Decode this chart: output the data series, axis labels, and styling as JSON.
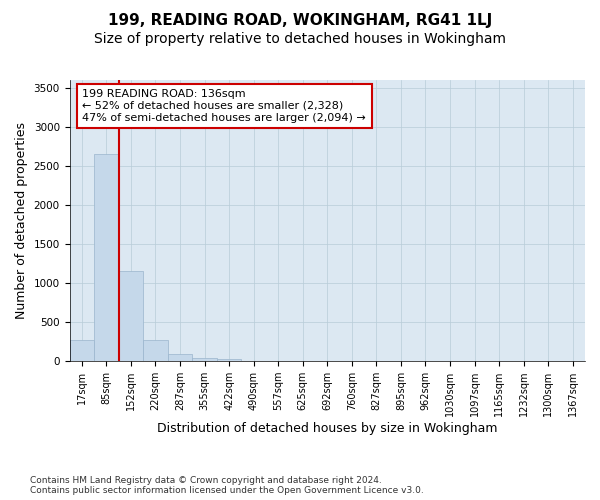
{
  "title": "199, READING ROAD, WOKINGHAM, RG41 1LJ",
  "subtitle": "Size of property relative to detached houses in Wokingham",
  "xlabel": "Distribution of detached houses by size in Wokingham",
  "ylabel": "Number of detached properties",
  "footer_line1": "Contains HM Land Registry data © Crown copyright and database right 2024.",
  "footer_line2": "Contains public sector information licensed under the Open Government Licence v3.0.",
  "categories": [
    "17sqm",
    "85sqm",
    "152sqm",
    "220sqm",
    "287sqm",
    "355sqm",
    "422sqm",
    "490sqm",
    "557sqm",
    "625sqm",
    "692sqm",
    "760sqm",
    "827sqm",
    "895sqm",
    "962sqm",
    "1030sqm",
    "1097sqm",
    "1165sqm",
    "1232sqm",
    "1300sqm",
    "1367sqm"
  ],
  "values": [
    275,
    2650,
    1150,
    275,
    90,
    45,
    25,
    0,
    0,
    0,
    0,
    0,
    0,
    0,
    0,
    0,
    0,
    0,
    0,
    0,
    0
  ],
  "bar_color": "#c5d8ea",
  "bar_edge_color": "#9ab5cc",
  "vline_x": 1.5,
  "vline_color": "#cc0000",
  "annotation_text": "199 READING ROAD: 136sqm\n← 52% of detached houses are smaller (2,328)\n47% of semi-detached houses are larger (2,094) →",
  "annotation_box_facecolor": "#ffffff",
  "annotation_box_edgecolor": "#cc0000",
  "ylim": [
    0,
    3600
  ],
  "yticks": [
    0,
    500,
    1000,
    1500,
    2000,
    2500,
    3000,
    3500
  ],
  "bg_color": "#ffffff",
  "plot_bg_color": "#dce8f2",
  "grid_color": "#b8ccd8",
  "title_fontsize": 11,
  "subtitle_fontsize": 10,
  "xlabel_fontsize": 9,
  "ylabel_fontsize": 9,
  "tick_fontsize": 7,
  "annotation_fontsize": 8,
  "footer_fontsize": 6.5
}
